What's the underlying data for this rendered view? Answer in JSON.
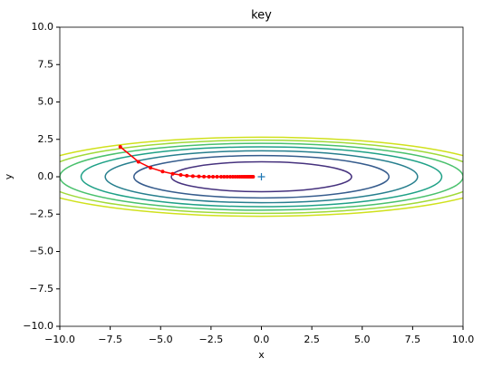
{
  "chart_data": {
    "type": "contour",
    "title": "key",
    "xlabel": "x",
    "ylabel": "y",
    "xlim": [
      -10,
      10
    ],
    "ylim": [
      -10,
      10
    ],
    "xticks": [
      {
        "value": -10,
        "label": "−10.0"
      },
      {
        "value": -7.5,
        "label": "−7.5"
      },
      {
        "value": -5,
        "label": "−5.0"
      },
      {
        "value": -2.5,
        "label": "−2.5"
      },
      {
        "value": 0,
        "label": "0.0"
      },
      {
        "value": 2.5,
        "label": "2.5"
      },
      {
        "value": 5,
        "label": "5.0"
      },
      {
        "value": 7.5,
        "label": "7.5"
      },
      {
        "value": 10,
        "label": "10.0"
      }
    ],
    "yticks": [
      {
        "value": -10,
        "label": "−10.0"
      },
      {
        "value": -7.5,
        "label": "−7.5"
      },
      {
        "value": -5,
        "label": "−5.0"
      },
      {
        "value": -2.5,
        "label": "−2.5"
      },
      {
        "value": 0,
        "label": "0.0"
      },
      {
        "value": 2.5,
        "label": "2.5"
      },
      {
        "value": 5,
        "label": "5.0"
      },
      {
        "value": 7.5,
        "label": "7.5"
      },
      {
        "value": 10,
        "label": "10.0"
      }
    ],
    "contour_levels": [
      1,
      2,
      3,
      4,
      5,
      6,
      7
    ],
    "contour_colors": [
      "#46327e",
      "#365c8d",
      "#277f8e",
      "#1fa187",
      "#4ac16d",
      "#a0da39",
      "#d0e11c"
    ],
    "path": {
      "color": "#ff0000",
      "x": [
        -7,
        -6.1,
        -5.5,
        -4.9,
        -4.4,
        -4.0,
        -3.7,
        -3.4,
        -3.1,
        -2.85,
        -2.6,
        -2.4,
        -2.2,
        -2.0,
        -1.85,
        -1.7,
        -1.55,
        -1.42,
        -1.3,
        -1.18,
        -1.07,
        -0.97,
        -0.88,
        -0.8,
        -0.72,
        -0.65,
        -0.58,
        -0.52,
        -0.46,
        -0.41
      ],
      "y": [
        2,
        1.0,
        0.6,
        0.35,
        0.2,
        0.12,
        0.07,
        0.04,
        0.02,
        0.01,
        0,
        0,
        0,
        0,
        0,
        0,
        0,
        0,
        0,
        0,
        0,
        0,
        0,
        0,
        0,
        0,
        0,
        0,
        0,
        0
      ]
    },
    "marker": {
      "x": 0,
      "y": 0,
      "color": "#1f77b4"
    }
  }
}
